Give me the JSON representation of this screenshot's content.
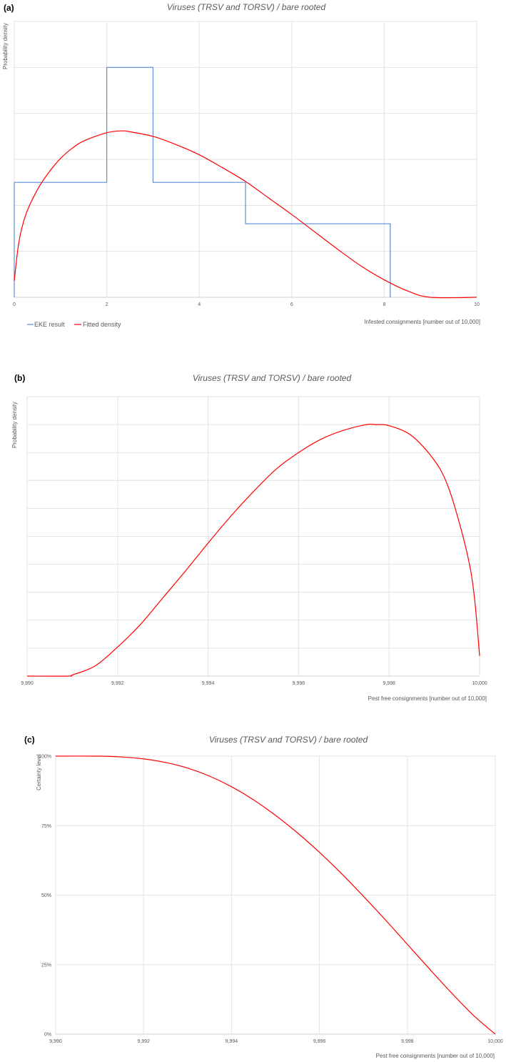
{
  "chart_data": [
    {
      "panel_label": "(a)",
      "type": "line",
      "title": "Viruses (TRSV and TORSV) / bare rooted",
      "xlabel": "Infested consignments [number out of 10,000]",
      "ylabel": "Probability density",
      "xlim": [
        0,
        10
      ],
      "x_ticks": [
        0,
        2,
        4,
        6,
        8,
        10
      ],
      "x_tick_labels": [
        "0",
        "2",
        "4",
        "6",
        "8",
        "10"
      ],
      "y_grid_lines": 6,
      "y_tick_labels": [],
      "grid": "on",
      "legend": "bottom-left",
      "colors": {
        "eke": "#5b8fd6",
        "fitted": "#ff0000"
      },
      "series": [
        {
          "name": "EKE result",
          "type": "step",
          "color": "#5b8fd6",
          "steps": [
            {
              "x0": 0,
              "x1": 2,
              "density": 0.125
            },
            {
              "x0": 2,
              "x1": 3,
              "density": 0.25
            },
            {
              "x0": 3,
              "x1": 5,
              "density": 0.125
            },
            {
              "x0": 5,
              "x1": 8.13,
              "density": 0.08
            }
          ]
        },
        {
          "name": "Fitted density",
          "type": "line",
          "color": "#ff0000",
          "x": [
            0,
            0.1,
            0.25,
            0.5,
            0.75,
            1,
            1.25,
            1.5,
            2,
            2.33,
            2.5,
            3,
            3.5,
            4,
            4.5,
            5,
            5.5,
            6,
            6.5,
            7,
            7.5,
            8,
            8.5,
            9,
            10
          ],
          "y": [
            0.018,
            0.06,
            0.09,
            0.117,
            0.136,
            0.151,
            0.162,
            0.17,
            0.179,
            0.181,
            0.18,
            0.175,
            0.166,
            0.155,
            0.141,
            0.126,
            0.108,
            0.09,
            0.071,
            0.052,
            0.034,
            0.019,
            0.007,
            0.0,
            0.0
          ]
        }
      ]
    },
    {
      "panel_label": "(b)",
      "type": "line",
      "title": "Viruses (TRSV and TORSV) / bare rooted",
      "xlabel": "Pest free consignments [number out of 10,000]",
      "ylabel": "Probability density",
      "xlim": [
        9990,
        10000
      ],
      "x_ticks": [
        9990,
        9992,
        9994,
        9996,
        9998,
        10000
      ],
      "x_tick_labels": [
        "9,990",
        "9,992",
        "9,994",
        "9,996",
        "9,998",
        "10,000"
      ],
      "y_grid_lines": 10,
      "y_tick_labels": [],
      "grid": "on",
      "colors": {
        "fitted": "#ff0000"
      },
      "series": [
        {
          "type": "line",
          "color": "#ff0000",
          "x": [
            9990,
            9990.91,
            9991,
            9991.5,
            9992,
            9992.5,
            9993,
            9993.5,
            9994,
            9994.5,
            9995,
            9995.5,
            9996,
            9996.5,
            9997,
            9997.5,
            9997.7,
            9998,
            9998.5,
            9999,
            9999.3,
            9999.6,
            9999.8,
            9999.9,
            10000
          ],
          "y": [
            0.0,
            0.0,
            0.001,
            0.009,
            0.026,
            0.046,
            0.07,
            0.094,
            0.119,
            0.143,
            0.165,
            0.185,
            0.2,
            0.212,
            0.22,
            0.225,
            0.225,
            0.224,
            0.215,
            0.193,
            0.17,
            0.13,
            0.095,
            0.065,
            0.018
          ]
        }
      ]
    },
    {
      "panel_label": "(c)",
      "type": "line",
      "title": "Viruses (TRSV and TORSV) / bare rooted",
      "xlabel": "Pest free consignments [number out of 10,000]",
      "ylabel": "Certainty level",
      "xlim": [
        9990,
        10000
      ],
      "ylim": [
        0,
        1
      ],
      "x_ticks": [
        9990,
        9992,
        9994,
        9996,
        9998,
        10000
      ],
      "x_tick_labels": [
        "9,990",
        "9,992",
        "9,994",
        "9,996",
        "9,998",
        "10,000"
      ],
      "y_ticks": [
        0,
        0.25,
        0.5,
        0.75,
        1
      ],
      "y_tick_labels": [
        "0%",
        "25%",
        "50%",
        "75%",
        "100%"
      ],
      "grid": "on",
      "colors": {
        "fitted": "#ff0000"
      },
      "series": [
        {
          "type": "line",
          "color": "#ff0000",
          "x": [
            9990,
            9991,
            9991.5,
            9992,
            9992.5,
            9993,
            9993.5,
            9994,
            9994.5,
            9995,
            9995.5,
            9996,
            9996.5,
            9997,
            9997.5,
            9998,
            9998.5,
            9999,
            9999.5,
            10000
          ],
          "y": [
            1.0,
            1.0,
            0.997,
            0.99,
            0.977,
            0.957,
            0.928,
            0.89,
            0.843,
            0.787,
            0.724,
            0.654,
            0.578,
            0.496,
            0.411,
            0.323,
            0.235,
            0.149,
            0.068,
            0.0
          ]
        }
      ]
    }
  ]
}
